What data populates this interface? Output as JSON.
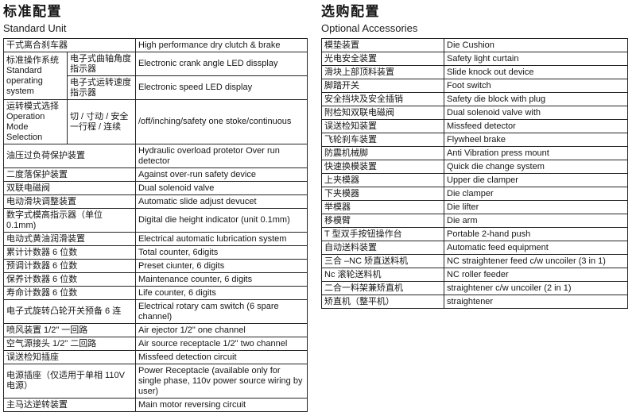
{
  "left_section": {
    "title": "标准配置",
    "subtitle": "Standard Unit",
    "rows": [
      [
        {
          "t": "干式离合刹车器",
          "colspan": 2,
          "n": "spec-name-cell"
        },
        {
          "t": "High performance dry clutch & brake",
          "n": "spec-desc-cell"
        }
      ],
      [
        {
          "t": "标准操作系统 Standard operating system",
          "rowspan": 2,
          "n": "spec-group-cell"
        },
        {
          "t": "电子式曲轴角度指示器",
          "n": "spec-name-cell"
        },
        {
          "t": "Electronic crank angle LED dissplay",
          "n": "spec-desc-cell"
        }
      ],
      [
        {
          "t": "电子式运转速度指示器",
          "n": "spec-name-cell"
        },
        {
          "t": "Electronic speed LED display",
          "n": "spec-desc-cell"
        }
      ],
      [
        {
          "t": "运转模式选择 Operation Mode Selection",
          "n": "spec-group-cell"
        },
        {
          "t": "切 / 寸动 / 安全一行程 / 连续",
          "n": "spec-name-cell"
        },
        {
          "t": "/off/inching/safety one stoke/continuous",
          "n": "spec-desc-cell"
        }
      ],
      [
        {
          "t": "油压过负荷保护装置",
          "colspan": 2,
          "n": "spec-name-cell"
        },
        {
          "t": "Hydraulic overload protetor Over run detector",
          "n": "spec-desc-cell"
        }
      ],
      [
        {
          "t": "二度落保护装置",
          "colspan": 2,
          "n": "spec-name-cell"
        },
        {
          "t": "Against over-run safety device",
          "n": "spec-desc-cell"
        }
      ],
      [
        {
          "t": "双联电磁阀",
          "colspan": 2,
          "n": "spec-name-cell"
        },
        {
          "t": "Dual solenoid valve",
          "n": "spec-desc-cell"
        }
      ],
      [
        {
          "t": "电动滑块调整装置",
          "colspan": 2,
          "n": "spec-name-cell"
        },
        {
          "t": "Automatic slide adjust devucet",
          "n": "spec-desc-cell"
        }
      ],
      [
        {
          "t": "数字式模高指示器（单位 0.1mm)",
          "colspan": 2,
          "n": "spec-name-cell"
        },
        {
          "t": "Digital die height indicator (unit 0.1mm)",
          "n": "spec-desc-cell"
        }
      ],
      [
        {
          "t": "电动式黄油润滑装置",
          "colspan": 2,
          "n": "spec-name-cell"
        },
        {
          "t": "Electrical automatic lubrication system",
          "n": "spec-desc-cell"
        }
      ],
      [
        {
          "t": "累计计数器 6 位数",
          "colspan": 2,
          "n": "spec-name-cell"
        },
        {
          "t": "Total counter, 6digits",
          "n": "spec-desc-cell"
        }
      ],
      [
        {
          "t": "预调计数器 6 位数",
          "colspan": 2,
          "n": "spec-name-cell"
        },
        {
          "t": "Preset ciunter, 6 digits",
          "n": "spec-desc-cell"
        }
      ],
      [
        {
          "t": "保养计数器 6 位数",
          "colspan": 2,
          "n": "spec-name-cell"
        },
        {
          "t": "Maintenance counter, 6 digits",
          "n": "spec-desc-cell"
        }
      ],
      [
        {
          "t": "寿命计数器 6 位数",
          "colspan": 2,
          "n": "spec-name-cell"
        },
        {
          "t": "Life counter, 6 digits",
          "n": "spec-desc-cell"
        }
      ],
      [
        {
          "t": "电子式旋转凸轮开关预备 6 连",
          "colspan": 2,
          "n": "spec-name-cell"
        },
        {
          "t": "Electrical rotary cam switch (6 spare channel)",
          "n": "spec-desc-cell"
        }
      ],
      [
        {
          "t": "喷风装置 1/2\" 一回路",
          "colspan": 2,
          "n": "spec-name-cell"
        },
        {
          "t": "Air ejector 1/2\" one channel",
          "n": "spec-desc-cell"
        }
      ],
      [
        {
          "t": "空气源接头 1/2\" 二回路",
          "colspan": 2,
          "n": "spec-name-cell"
        },
        {
          "t": "Air source receptacle 1/2\" two channel",
          "n": "spec-desc-cell"
        }
      ],
      [
        {
          "t": "误送检知插座",
          "colspan": 2,
          "n": "spec-name-cell"
        },
        {
          "t": "Missfeed detection circuit",
          "n": "spec-desc-cell"
        }
      ],
      [
        {
          "t": "电源插座（仅适用于单相 110V 电源）",
          "colspan": 2,
          "n": "spec-name-cell"
        },
        {
          "t": "Power Receptacle (available only for single phase, 110v power source wiring by user)",
          "n": "spec-desc-cell"
        }
      ],
      [
        {
          "t": "主马达逆转装置",
          "colspan": 2,
          "n": "spec-name-cell"
        },
        {
          "t": "Main motor reversing circuit",
          "n": "spec-desc-cell"
        }
      ]
    ]
  },
  "right_section": {
    "title": "选购配置",
    "subtitle": "Optional Accessories",
    "rows": [
      [
        {
          "t": "模垫装置",
          "n": "spec-name-cell"
        },
        {
          "t": "Die Cushion",
          "n": "spec-desc-cell"
        }
      ],
      [
        {
          "t": "光电安全装置",
          "n": "spec-name-cell"
        },
        {
          "t": "Safety light curtain",
          "n": "spec-desc-cell"
        }
      ],
      [
        {
          "t": "滑块上部顶料装置",
          "n": "spec-name-cell"
        },
        {
          "t": "Slide knock out device",
          "n": "spec-desc-cell"
        }
      ],
      [
        {
          "t": "脚踏开关",
          "n": "spec-name-cell"
        },
        {
          "t": "Foot switch",
          "n": "spec-desc-cell"
        }
      ],
      [
        {
          "t": "安全挡块及安全插销",
          "n": "spec-name-cell"
        },
        {
          "t": "Safety die block with plug",
          "n": "spec-desc-cell"
        }
      ],
      [
        {
          "t": "附检知双联电磁阀",
          "n": "spec-name-cell"
        },
        {
          "t": "Dual solenoid valve with",
          "n": "spec-desc-cell"
        }
      ],
      [
        {
          "t": "误送检知装置",
          "n": "spec-name-cell"
        },
        {
          "t": "Missfeed detector",
          "n": "spec-desc-cell"
        }
      ],
      [
        {
          "t": "飞轮刹车装置",
          "n": "spec-name-cell"
        },
        {
          "t": "Flywheel brake",
          "n": "spec-desc-cell"
        }
      ],
      [
        {
          "t": "防震机械脚",
          "n": "spec-name-cell"
        },
        {
          "t": "Anti Vibration press mount",
          "n": "spec-desc-cell"
        }
      ],
      [
        {
          "t": "快速换模装置",
          "n": "spec-name-cell"
        },
        {
          "t": "Quick die change system",
          "n": "spec-desc-cell"
        }
      ],
      [
        {
          "t": "上夹模器",
          "n": "spec-name-cell"
        },
        {
          "t": "Upper die clamper",
          "n": "spec-desc-cell"
        }
      ],
      [
        {
          "t": "下夹模器",
          "n": "spec-name-cell"
        },
        {
          "t": "Die clamper",
          "n": "spec-desc-cell"
        }
      ],
      [
        {
          "t": "举模器",
          "n": "spec-name-cell"
        },
        {
          "t": "Die lifter",
          "n": "spec-desc-cell"
        }
      ],
      [
        {
          "t": "移模臂",
          "n": "spec-name-cell"
        },
        {
          "t": "Die arm",
          "n": "spec-desc-cell"
        }
      ],
      [
        {
          "t": "T 型双手按钮操作台",
          "n": "spec-name-cell"
        },
        {
          "t": "Portable 2-hand push",
          "n": "spec-desc-cell"
        }
      ],
      [
        {
          "t": "自动送料装置",
          "n": "spec-name-cell"
        },
        {
          "t": "Automatic feed equipment",
          "n": "spec-desc-cell"
        }
      ],
      [
        {
          "t": "三合 –NC 矫直送料机",
          "n": "spec-name-cell"
        },
        {
          "t": "NC straightener feed c/w uncoiler (3 in 1)",
          "n": "spec-desc-cell"
        }
      ],
      [
        {
          "t": "Nc 滚轮送料机",
          "n": "spec-name-cell"
        },
        {
          "t": "NC roller feeder",
          "n": "spec-desc-cell"
        }
      ],
      [
        {
          "t": "二合一料架兼矫直机",
          "n": "spec-name-cell"
        },
        {
          "t": "straightener c/w uncoiler (2 in 1)",
          "n": "spec-desc-cell"
        }
      ],
      [
        {
          "t": "矫直机（整平机）",
          "n": "spec-name-cell"
        },
        {
          "t": "straightener",
          "n": "spec-desc-cell"
        }
      ]
    ]
  }
}
